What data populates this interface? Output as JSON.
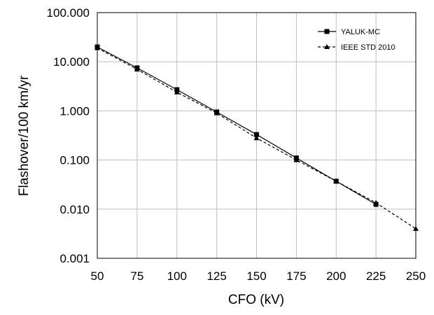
{
  "chart_data": {
    "type": "line",
    "xlabel": "CFO (kV)",
    "ylabel": "Flashover/100 km/yr",
    "x_ticks": [
      "50",
      "75",
      "100",
      "125",
      "150",
      "175",
      "200",
      "225",
      "250"
    ],
    "y_ticks": [
      "0.001",
      "0.010",
      "0.100",
      "1.000",
      "10.000",
      "100.000"
    ],
    "xlim": [
      50,
      250
    ],
    "ylim": [
      0.001,
      100
    ],
    "y_scale": "log",
    "grid": true,
    "legend_position": "top-right",
    "series": [
      {
        "name": "YALUK-MC",
        "marker": "square",
        "line": "solid",
        "color": "#000000",
        "x": [
          50,
          75,
          100,
          125,
          150,
          175,
          200,
          225
        ],
        "y": [
          20,
          7.5,
          2.7,
          0.95,
          0.33,
          0.11,
          0.037,
          0.0125
        ]
      },
      {
        "name": "IEEE STD 2010",
        "marker": "triangle",
        "line": "dashed",
        "color": "#000000",
        "x": [
          50,
          75,
          100,
          125,
          150,
          175,
          200,
          225,
          250
        ],
        "y": [
          19,
          7,
          2.4,
          0.9,
          0.28,
          0.1,
          0.037,
          0.0135,
          0.004
        ]
      }
    ]
  }
}
